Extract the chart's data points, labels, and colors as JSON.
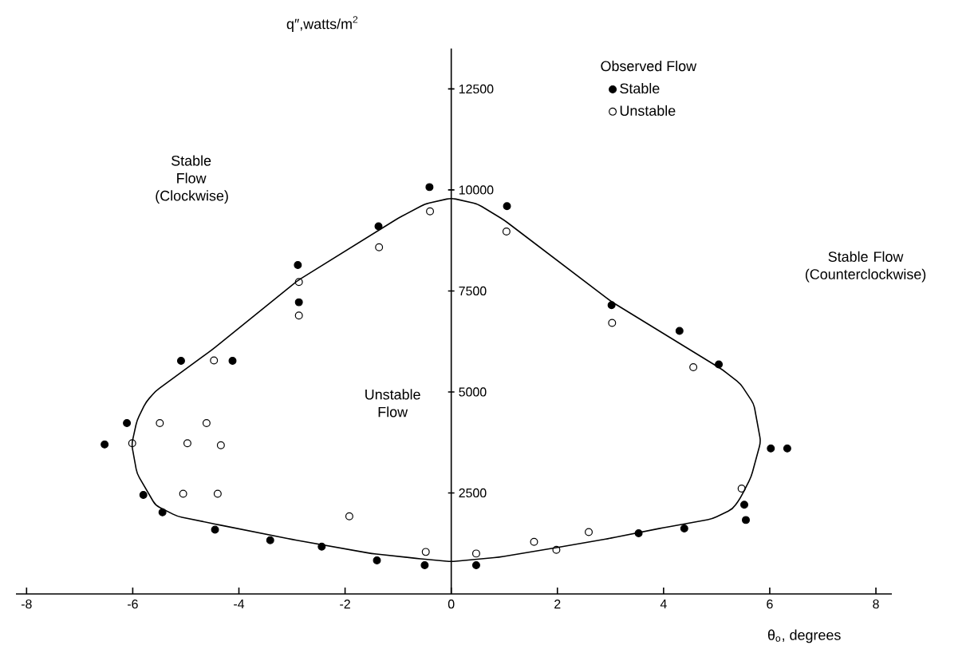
{
  "chart_data": {
    "type": "scatter",
    "xlabel": "θ$_{o}$, degrees",
    "ylabel": "q″,watts/m$^{2}$",
    "legend_title": "Observed Flow",
    "legend": "top right",
    "marker": "circle",
    "grid": false,
    "xlim": [
      -8.2,
      8.3
    ],
    "ylim": [
      0,
      13500
    ],
    "xticks": [
      -8,
      -6,
      -4,
      -2,
      0,
      2,
      4,
      6,
      8
    ],
    "yticks": [
      2500,
      5000,
      7500,
      10000,
      12500
    ],
    "annotations": [
      "Stable Flow (Clockwise)",
      "Unstable Flow",
      "Stable Flow (Counterclockwise)"
    ],
    "series": [
      {
        "name": "Stable",
        "color": "#000000",
        "x": [
          -2.89,
          -2.87,
          -5.09,
          -4.12,
          -6.11,
          -6.53,
          -5.8,
          -5.44,
          -4.45,
          -3.41,
          -2.44,
          -1.4,
          -0.5,
          0.47,
          -0.41,
          -1.37,
          1.05,
          3.02,
          4.3,
          5.04,
          6.02,
          6.33,
          5.52,
          5.55,
          4.39,
          3.53
        ],
        "values": [
          8140,
          7220,
          5770,
          5770,
          4230,
          3700,
          2450,
          2020,
          1590,
          1330,
          1170,
          830,
          710,
          710,
          10070,
          9100,
          9600,
          7150,
          6510,
          5680,
          3600,
          3600,
          2210,
          1830,
          1620,
          1500
        ]
      },
      {
        "name": "Unstable",
        "color": "#ffffff",
        "x": [
          -1.36,
          -2.87,
          -2.87,
          -4.47,
          -5.49,
          -4.61,
          -6.01,
          -4.97,
          -4.34,
          -5.05,
          -4.4,
          -1.92,
          -0.48,
          0.47,
          -0.4,
          1.04,
          3.03,
          4.56,
          5.47,
          1.56,
          1.98,
          2.59
        ],
        "values": [
          8580,
          7720,
          6890,
          5780,
          4230,
          4230,
          3730,
          3730,
          3680,
          2480,
          2480,
          1920,
          1040,
          1000,
          9470,
          8970,
          6710,
          5610,
          2610,
          1290,
          1090,
          1530
        ]
      }
    ]
  }
}
